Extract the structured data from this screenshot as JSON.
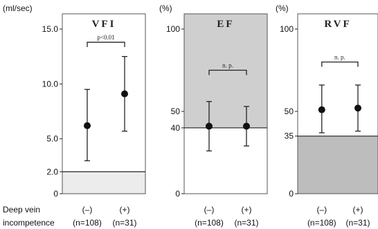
{
  "row_labels": {
    "line1": "Deep vein",
    "line2": "incompetence"
  },
  "chart_data": [
    {
      "type": "scatter",
      "title": "VFI",
      "ylabel": "(ml/sec)",
      "ylim": [
        0,
        15.0
      ],
      "yticks": [
        {
          "v": 0,
          "label": "0"
        },
        {
          "v": 2.0,
          "label": "2.0"
        },
        {
          "v": 5.0,
          "label": "5.0"
        },
        {
          "v": 10.0,
          "label": "10.0"
        },
        {
          "v": 15.0,
          "label": "15.0"
        }
      ],
      "threshold": 2.0,
      "shaded": "below",
      "categories": [
        {
          "sign": "(–)",
          "n": "(n=108)"
        },
        {
          "sign": "(+)",
          "n": "(n=31)"
        }
      ],
      "points": [
        {
          "mean": 6.2,
          "low": 3.0,
          "high": 9.5
        },
        {
          "mean": 9.1,
          "low": 5.7,
          "high": 12.5
        }
      ],
      "significance": "p<0.01",
      "bracket_y": 13.8
    },
    {
      "type": "scatter",
      "title": "EF",
      "ylabel": "(%)",
      "ylim": [
        0,
        100
      ],
      "yticks": [
        {
          "v": 0,
          "label": "0"
        },
        {
          "v": 40,
          "label": "40"
        },
        {
          "v": 50,
          "label": "50"
        },
        {
          "v": 100,
          "label": "100"
        }
      ],
      "threshold": 40,
      "shaded": "above",
      "categories": [
        {
          "sign": "(–)",
          "n": "(n=108)"
        },
        {
          "sign": "(+)",
          "n": "(n=31)"
        }
      ],
      "points": [
        {
          "mean": 41,
          "low": 26,
          "high": 56
        },
        {
          "mean": 41,
          "low": 29,
          "high": 53
        }
      ],
      "significance": "n. p.",
      "bracket_y": 75
    },
    {
      "type": "scatter",
      "title": "RVF",
      "ylabel": "(%)",
      "ylim": [
        0,
        100
      ],
      "yticks": [
        {
          "v": 0,
          "label": "0"
        },
        {
          "v": 35,
          "label": "35"
        },
        {
          "v": 50,
          "label": "50"
        },
        {
          "v": 100,
          "label": "100"
        }
      ],
      "threshold": 35,
      "shaded": "below",
      "categories": [
        {
          "sign": "(–)",
          "n": "(n=108)"
        },
        {
          "sign": "(+)",
          "n": "(n=31)"
        }
      ],
      "points": [
        {
          "mean": 51,
          "low": 37,
          "high": 66
        },
        {
          "mean": 52,
          "low": 38,
          "high": 66
        }
      ],
      "significance": "n. p.",
      "bracket_y": 80
    }
  ]
}
